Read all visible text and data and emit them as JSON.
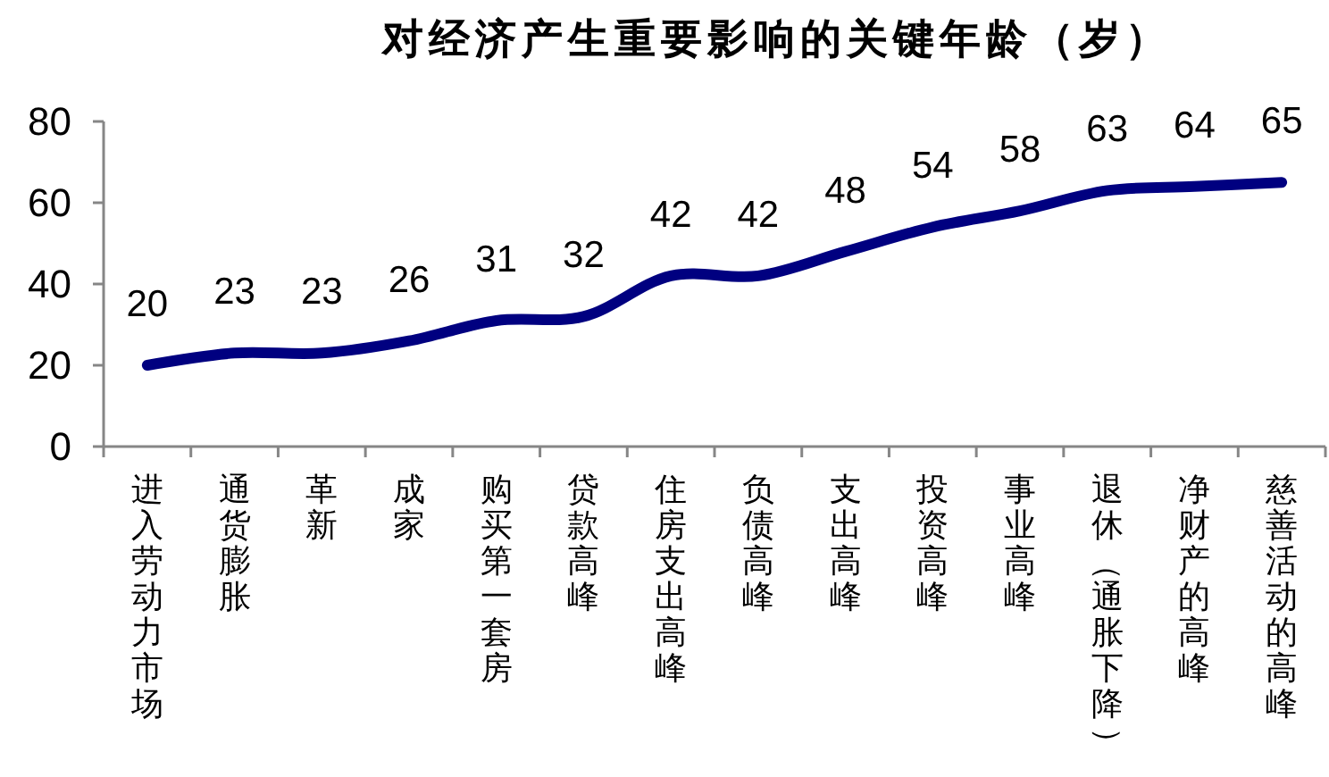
{
  "chart_data": {
    "type": "line",
    "title": "对经济产生重要影响的关键年龄（岁）",
    "categories": [
      "进入劳动力市场",
      "通货膨胀",
      "革新",
      "成家",
      "购买第一套房",
      "贷款高峰",
      "住房支出高峰",
      "负债高峰",
      "支出高峰",
      "投资高峰",
      "事业高峰",
      "退休（通胀下降）",
      "净财产的高峰",
      "慈善活动的高峰"
    ],
    "series": [
      {
        "color": "#000080",
        "values": [
          20,
          23,
          23,
          26,
          31,
          32,
          42,
          42,
          48,
          54,
          58,
          63,
          64,
          65
        ]
      }
    ],
    "ylim": [
      0,
      80
    ],
    "yticks": [
      0,
      20,
      40,
      60,
      80
    ],
    "grid": false,
    "marker": "none",
    "data_labels": true
  }
}
